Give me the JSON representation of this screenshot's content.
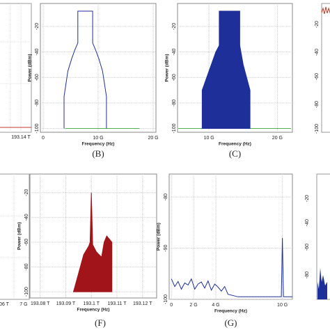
{
  "chart_data": [
    {
      "type": "line",
      "caption": "(B)",
      "xlabel": "Frequency (Hz)",
      "ylabel": "Power (dBm)",
      "xlim": [
        -500000000.0,
        20500000000.0
      ],
      "xticks": [
        0,
        {
          "value": 10000000000.0,
          "label": "10 G"
        },
        {
          "value": 20000000000.0,
          "label": "20 G"
        }
      ],
      "ylim": [
        -103,
        -2
      ],
      "yticks": [
        -20,
        -40,
        -60,
        -80,
        -100
      ],
      "grid": true,
      "series": [
        {
          "color": "#4caf50",
          "x": [
            4000000000.0,
            17500000000.0
          ],
          "values": [
            -100,
            -100
          ]
        },
        {
          "color": "#1f2f9a",
          "x": [
            3800000000.0,
            3800000000.0,
            4500000000.0,
            5200000000.0,
            5800000000.0,
            6300000000.0,
            6300000000.0,
            9000000000.0,
            9000000000.0,
            9500000000.0,
            10100000000.0,
            10800000000.0,
            11500000000.0,
            11500000000.0
          ],
          "values": [
            -100,
            -75,
            -55,
            -45,
            -38,
            -33,
            -8,
            -8,
            -33,
            -38,
            -45,
            -55,
            -75,
            -100
          ]
        }
      ]
    },
    {
      "type": "area",
      "caption": "(C)",
      "xlabel": "Frequency (Hz)",
      "ylabel": "Power (dBm)",
      "xlim": [
        5400000000.0,
        22200000000.0
      ],
      "xticks": [
        {
          "value": 10000000000.0,
          "label": "10 G"
        },
        {
          "value": 20000000000.0,
          "label": "20 G"
        }
      ],
      "ylim": [
        -103,
        -2
      ],
      "yticks": [
        -20,
        -40,
        -60,
        -80,
        -100
      ],
      "grid": true,
      "series": [
        {
          "color": "#4caf50",
          "x": [
            5500000000.0,
            22000000000.0
          ],
          "values": [
            -100,
            -100
          ]
        },
        {
          "color": "#1f2f9a",
          "x": [
            9000000000.0,
            9000000000.0,
            10000000000.0,
            11000000000.0,
            11500000000.0,
            11500000000.0,
            14500000000.0,
            14500000000.0,
            15000000000.0,
            16000000000.0,
            16000000000.0
          ],
          "values": [
            -100,
            -70,
            -55,
            -40,
            -35,
            -8,
            -8,
            -35,
            -50,
            -70,
            -100
          ]
        }
      ]
    },
    {
      "type": "area",
      "caption": "(F)",
      "xlabel": "Frequency (Hz)",
      "ylabel": "Power (dBm)",
      "xlim": [
        193076000000000.0,
        193125500000000.0
      ],
      "xticks": [
        {
          "value": 193080000000000.0,
          "label": "193.08 T"
        },
        {
          "value": 193090000000000.0,
          "label": "193.09 T"
        },
        {
          "value": 193100000000000.0,
          "label": "193.1 T"
        },
        {
          "value": 193110000000000.0,
          "label": "193.11 T"
        },
        {
          "value": 193120000000000.0,
          "label": "193.12 T"
        }
      ],
      "ylim": [
        -105,
        -5
      ],
      "yticks": [
        -20,
        -40,
        -60,
        -80,
        -100
      ],
      "grid": true,
      "series": [
        {
          "color": "#a0141a",
          "x": [
            193093000000000.0,
            193095000000000.0,
            193097000000000.0,
            193099000000000.0,
            193099500000000.0,
            193100000000000.0,
            193100500000000.0,
            193102000000000.0,
            193104000000000.0,
            193105000000000.0,
            193106000000000.0,
            193108000000000.0,
            193108000000000.0
          ],
          "values": [
            -100,
            -85,
            -70,
            -63,
            -60,
            -20,
            -62,
            -68,
            -72,
            -60,
            -55,
            -60,
            -100
          ]
        }
      ]
    },
    {
      "type": "line",
      "caption": "(G)",
      "xlabel": "Frequency (Hz)",
      "ylabel": "Power (dBm)",
      "xlim": [
        -200000000.0,
        10900000000.0
      ],
      "xticks": [
        0,
        {
          "value": 2000000000.0,
          "label": "2 G"
        },
        {
          "value": 4000000000.0,
          "label": "4 G"
        },
        {
          "value": 10000000000.0,
          "label": "10 G"
        }
      ],
      "ylim": [
        -100,
        -75.5
      ],
      "yticks": [
        -80,
        -90,
        -100
      ],
      "grid": true,
      "series": [
        {
          "color": "#1f2f9a",
          "x": [
            0,
            300000000.0,
            600000000.0,
            900000000.0,
            1200000000.0,
            1500000000.0,
            1800000000.0,
            2100000000.0,
            2400000000.0,
            2700000000.0,
            3000000000.0,
            3300000000.0,
            3600000000.0,
            3900000000.0,
            4200000000.0,
            4500000000.0,
            4800000000.0,
            5100000000.0,
            6000000000.0,
            8000000000.0,
            9900000000.0,
            10000000000.0,
            10100000000.0,
            10900000000.0
          ],
          "values": [
            -96,
            -97.5,
            -96.5,
            -98,
            -96.8,
            -97.2,
            -96,
            -98,
            -97,
            -96.6,
            -97.8,
            -96.4,
            -98.2,
            -97,
            -97.6,
            -98.4,
            -97.5,
            -99,
            -99.5,
            -99.5,
            -99.5,
            -88,
            -99.5,
            -99.5
          ]
        }
      ]
    }
  ],
  "fragments": [
    {
      "text": "193.14 T"
    },
    {
      "text": "-20"
    },
    {
      "text": "-40"
    },
    {
      "text": "-60"
    },
    {
      "text": "-80"
    },
    {
      "text": "-100"
    },
    {
      "text": "06 T"
    },
    {
      "text": "7 G"
    },
    {
      "text": "-20"
    },
    {
      "text": "-40"
    },
    {
      "text": "-60"
    },
    {
      "text": "-80"
    }
  ]
}
